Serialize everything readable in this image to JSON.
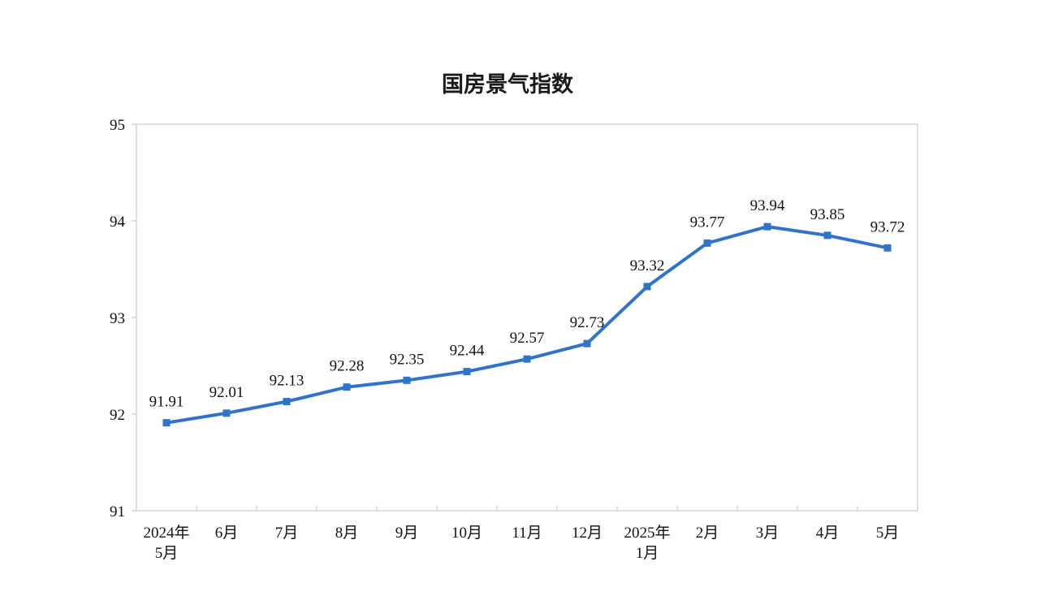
{
  "chart_data": {
    "type": "line",
    "title": "国房景气指数",
    "xlabel": "",
    "ylabel": "",
    "categories": [
      [
        "2024年",
        "5月"
      ],
      [
        "6月"
      ],
      [
        "7月"
      ],
      [
        "8月"
      ],
      [
        "9月"
      ],
      [
        "10月"
      ],
      [
        "11月"
      ],
      [
        "12月"
      ],
      [
        "2025年",
        "1月"
      ],
      [
        "2月"
      ],
      [
        "3月"
      ],
      [
        "4月"
      ],
      [
        "5月"
      ]
    ],
    "series": [
      {
        "values": [
          91.91,
          92.01,
          92.13,
          92.28,
          92.35,
          92.44,
          92.57,
          92.73,
          93.32,
          93.77,
          93.94,
          93.85,
          93.72
        ],
        "color": "#2f74c9"
      }
    ],
    "data_labels": [
      "91.91",
      "92.01",
      "92.13",
      "92.28",
      "92.35",
      "92.44",
      "92.57",
      "92.73",
      "93.32",
      "93.77",
      "93.94",
      "93.85",
      "93.72"
    ],
    "ylim": [
      91,
      95
    ],
    "yticks": [
      "91",
      "92",
      "93",
      "94",
      "95"
    ],
    "grid": false,
    "legend": "none",
    "frame_color": "#bfbfbf"
  }
}
